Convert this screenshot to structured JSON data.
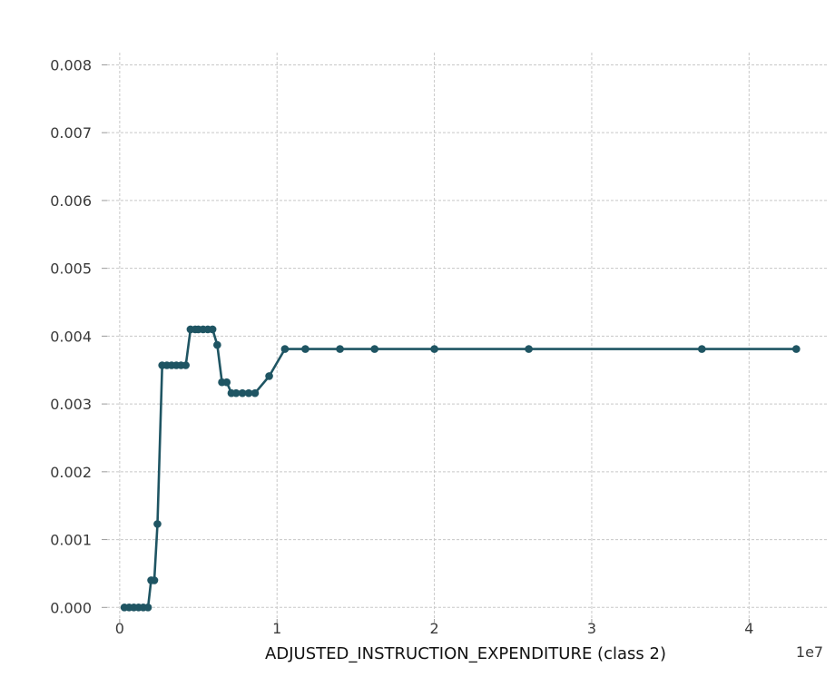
{
  "chart_data": {
    "type": "line",
    "title": "",
    "xlabel": "ADJUSTED_INSTRUCTION_EXPENDITURE (class 2)",
    "ylabel": "",
    "x_offset_label": "1e7",
    "xlim": [
      -0.08,
      4.5
    ],
    "ylim": [
      0.0,
      0.008
    ],
    "x_ticks": [
      0,
      1,
      2,
      3,
      4
    ],
    "x_tick_labels": [
      "0",
      "1",
      "2",
      "3",
      "4"
    ],
    "y_ticks": [
      0.0,
      0.001,
      0.002,
      0.003,
      0.004,
      0.005,
      0.006,
      0.007,
      0.008
    ],
    "y_tick_labels": [
      "0.000",
      "0.001",
      "0.002",
      "0.003",
      "0.004",
      "0.005",
      "0.006",
      "0.007",
      "0.008"
    ],
    "grid": true,
    "color": "#1f5563",
    "series": [
      {
        "x": [
          0.03,
          0.06,
          0.09,
          0.12,
          0.15,
          0.18,
          0.2,
          0.22,
          0.24,
          0.27,
          0.3,
          0.33,
          0.36,
          0.39,
          0.42,
          0.45,
          0.48,
          0.5,
          0.53,
          0.56,
          0.59,
          0.62,
          0.65,
          0.68,
          0.71,
          0.74,
          0.78,
          0.82,
          0.86,
          0.95,
          1.05,
          1.18,
          1.4,
          1.62,
          2.0,
          2.6,
          3.7,
          4.3
        ],
        "y": [
          0.0,
          0.0,
          0.0,
          0.0,
          0.0,
          0.0,
          0.0004,
          0.0004,
          0.00123,
          0.00357,
          0.00357,
          0.00357,
          0.00357,
          0.00357,
          0.00357,
          0.0041,
          0.0041,
          0.0041,
          0.0041,
          0.0041,
          0.0041,
          0.00387,
          0.00332,
          0.00332,
          0.00316,
          0.00316,
          0.00316,
          0.00316,
          0.00316,
          0.00341,
          0.00381,
          0.00381,
          0.00381,
          0.00381,
          0.00381,
          0.00381,
          0.00381,
          0.00381
        ]
      }
    ]
  }
}
